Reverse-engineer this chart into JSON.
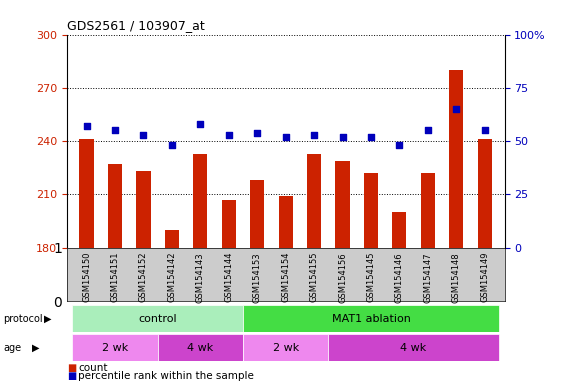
{
  "title": "GDS2561 / 103907_at",
  "samples": [
    "GSM154150",
    "GSM154151",
    "GSM154152",
    "GSM154142",
    "GSM154143",
    "GSM154144",
    "GSM154153",
    "GSM154154",
    "GSM154155",
    "GSM154156",
    "GSM154145",
    "GSM154146",
    "GSM154147",
    "GSM154148",
    "GSM154149"
  ],
  "bar_values": [
    241,
    227,
    223,
    190,
    233,
    207,
    218,
    209,
    233,
    229,
    222,
    200,
    222,
    280,
    241
  ],
  "dot_values": [
    57,
    55,
    53,
    48,
    58,
    53,
    54,
    52,
    53,
    52,
    52,
    48,
    55,
    65,
    55
  ],
  "ylim_left": [
    180,
    300
  ],
  "ylim_right": [
    0,
    100
  ],
  "yticks_left": [
    180,
    210,
    240,
    270,
    300
  ],
  "yticks_right": [
    0,
    25,
    50,
    75,
    100
  ],
  "yticklabels_left": [
    "180",
    "210",
    "240",
    "270",
    "300"
  ],
  "yticklabels_right": [
    "0",
    "25",
    "50",
    "75",
    "100%"
  ],
  "bar_color": "#cc2200",
  "dot_color": "#0000bb",
  "bg_color": "#cccccc",
  "protocol_groups": [
    {
      "label": "control",
      "start": 0,
      "end": 6,
      "color": "#aaeebb"
    },
    {
      "label": "MAT1 ablation",
      "start": 6,
      "end": 15,
      "color": "#44dd44"
    }
  ],
  "age_groups": [
    {
      "label": "2 wk",
      "start": 0,
      "end": 3,
      "color": "#ee88ee"
    },
    {
      "label": "4 wk",
      "start": 3,
      "end": 6,
      "color": "#cc44cc"
    },
    {
      "label": "2 wk",
      "start": 6,
      "end": 9,
      "color": "#ee88ee"
    },
    {
      "label": "4 wk",
      "start": 9,
      "end": 15,
      "color": "#cc44cc"
    }
  ],
  "legend_items": [
    {
      "label": "count",
      "color": "#cc2200"
    },
    {
      "label": "percentile rank within the sample",
      "color": "#0000bb"
    }
  ]
}
